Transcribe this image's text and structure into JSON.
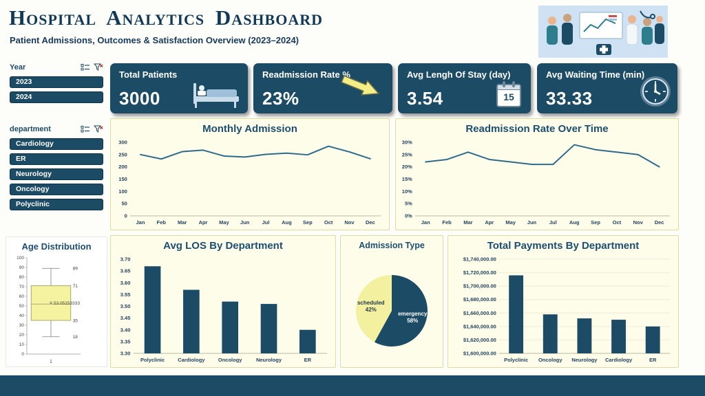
{
  "header": {
    "title": "Hospital Analytics Dashboard",
    "subtitle": "Patient Admissions, Outcomes & Satisfaction Overview (2023–2024)"
  },
  "slicers": {
    "year": {
      "label": "Year",
      "options": [
        "2023",
        "2024"
      ]
    },
    "department": {
      "label": "department",
      "options": [
        "Cardiology",
        "ER",
        "Neurology",
        "Oncology",
        "Polyclinic"
      ]
    }
  },
  "kpis": [
    {
      "label": "Total Patients",
      "value": "3000",
      "icon": "hospital-bed-icon"
    },
    {
      "label": "Readmission Rate %",
      "value": "23%",
      "icon": "down-right-arrow-icon"
    },
    {
      "label": "Avg Lengh Of Stay (day)",
      "value": "3.54",
      "icon": "calendar-icon",
      "icon_text": "15"
    },
    {
      "label": "Avg Waiting Time (min)",
      "value": "33.33",
      "icon": "clock-icon"
    }
  ],
  "colors": {
    "navy": "#1c4b66",
    "panel_yellow": "#fdfde9",
    "accent_yellow": "#f3ef86",
    "line_blue": "#2e6b8a"
  },
  "chart_data": [
    {
      "type": "line",
      "title": "Monthly Admission",
      "categories": [
        "Jan",
        "Feb",
        "Mar",
        "Apr",
        "May",
        "Jun",
        "Jul",
        "Aug",
        "Sep",
        "Oct",
        "Nov",
        "Dec"
      ],
      "values": [
        250,
        232,
        262,
        268,
        244,
        240,
        251,
        256,
        249,
        284,
        261,
        233
      ],
      "ymin": 0,
      "ymax": 300,
      "yticks": [
        0,
        50,
        100,
        150,
        200,
        250,
        300
      ],
      "ytick_labels": [
        "0",
        "50",
        "100",
        "150",
        "200",
        "250",
        "300"
      ],
      "grid": false,
      "legend": "none",
      "line_color": "#2e6b8a"
    },
    {
      "type": "line",
      "title": "Readmission Rate Over Time",
      "categories": [
        "Jan",
        "Feb",
        "Mar",
        "Apr",
        "May",
        "Jun",
        "Jul",
        "Aug",
        "Sep",
        "Oct",
        "Nov",
        "Dec"
      ],
      "values": [
        22,
        23,
        26,
        23,
        22,
        21,
        21,
        29,
        27,
        26,
        25,
        20
      ],
      "ymin": 0,
      "ymax": 30,
      "yticks": [
        0,
        5,
        10,
        15,
        20,
        25,
        30
      ],
      "ytick_labels": [
        "0%",
        "5%",
        "10%",
        "15%",
        "20%",
        "25%",
        "30%"
      ],
      "grid": false,
      "legend": "none",
      "line_color": "#2e6b8a"
    },
    {
      "type": "bar",
      "title": "Avg LOS By Department",
      "categories": [
        "Polyclinic",
        "Cardiology",
        "Oncology",
        "Neurology",
        "ER"
      ],
      "values": [
        3.67,
        3.57,
        3.52,
        3.51,
        3.4
      ],
      "ymin": 3.3,
      "ymax": 3.7,
      "yticks": [
        3.3,
        3.35,
        3.4,
        3.45,
        3.5,
        3.55,
        3.6,
        3.65,
        3.7
      ],
      "ytick_labels": [
        "3.30",
        "3.35",
        "3.40",
        "3.45",
        "3.50",
        "3.55",
        "3.60",
        "3.65",
        "3.70"
      ],
      "grid": false,
      "legend": "none",
      "bar_color": "#1c4b66"
    },
    {
      "type": "pie",
      "title": "Admission Type",
      "slices": [
        {
          "label": "emergency",
          "pct": 58,
          "color": "#1c4b66",
          "text_color": "#ffffff"
        },
        {
          "label": "scheduled",
          "pct": 42,
          "color": "#f3f1a0",
          "text_color": "#203a50"
        }
      ],
      "legend": "none"
    },
    {
      "type": "bar",
      "title": "Total Payments By Department",
      "categories": [
        "Polyclinic",
        "Oncology",
        "Neurology",
        "Cardiology",
        "ER"
      ],
      "values": [
        1716000,
        1658000,
        1652000,
        1650000,
        1640000
      ],
      "ymin": 1600000,
      "ymax": 1740000,
      "yticks": [
        1600000,
        1620000,
        1640000,
        1660000,
        1680000,
        1700000,
        1720000,
        1740000
      ],
      "ytick_labels": [
        "$1,600,000.00",
        "$1,620,000.00",
        "$1,640,000.00",
        "$1,660,000.00",
        "$1,680,000.00",
        "$1,700,000.00",
        "$1,720,000.00",
        "$1,740,000.00"
      ],
      "grid": true,
      "legend": "none",
      "bar_color": "#1c4b66"
    },
    {
      "type": "boxplot",
      "title": "Age Distribution",
      "min": 18,
      "q1": 35,
      "median": 52,
      "mean": 53.05153333,
      "q3": 71,
      "max": 89,
      "mean_label": "53.05153333",
      "point_labels": {
        "max": "89",
        "q3": "71",
        "q1": "35",
        "min": "18"
      },
      "ymin": 0,
      "ymax": 100,
      "yticks": [
        0,
        10,
        20,
        30,
        40,
        50,
        60,
        70,
        80,
        90,
        100
      ],
      "xlabel": "1",
      "box_color": "#f5f2a0"
    }
  ]
}
